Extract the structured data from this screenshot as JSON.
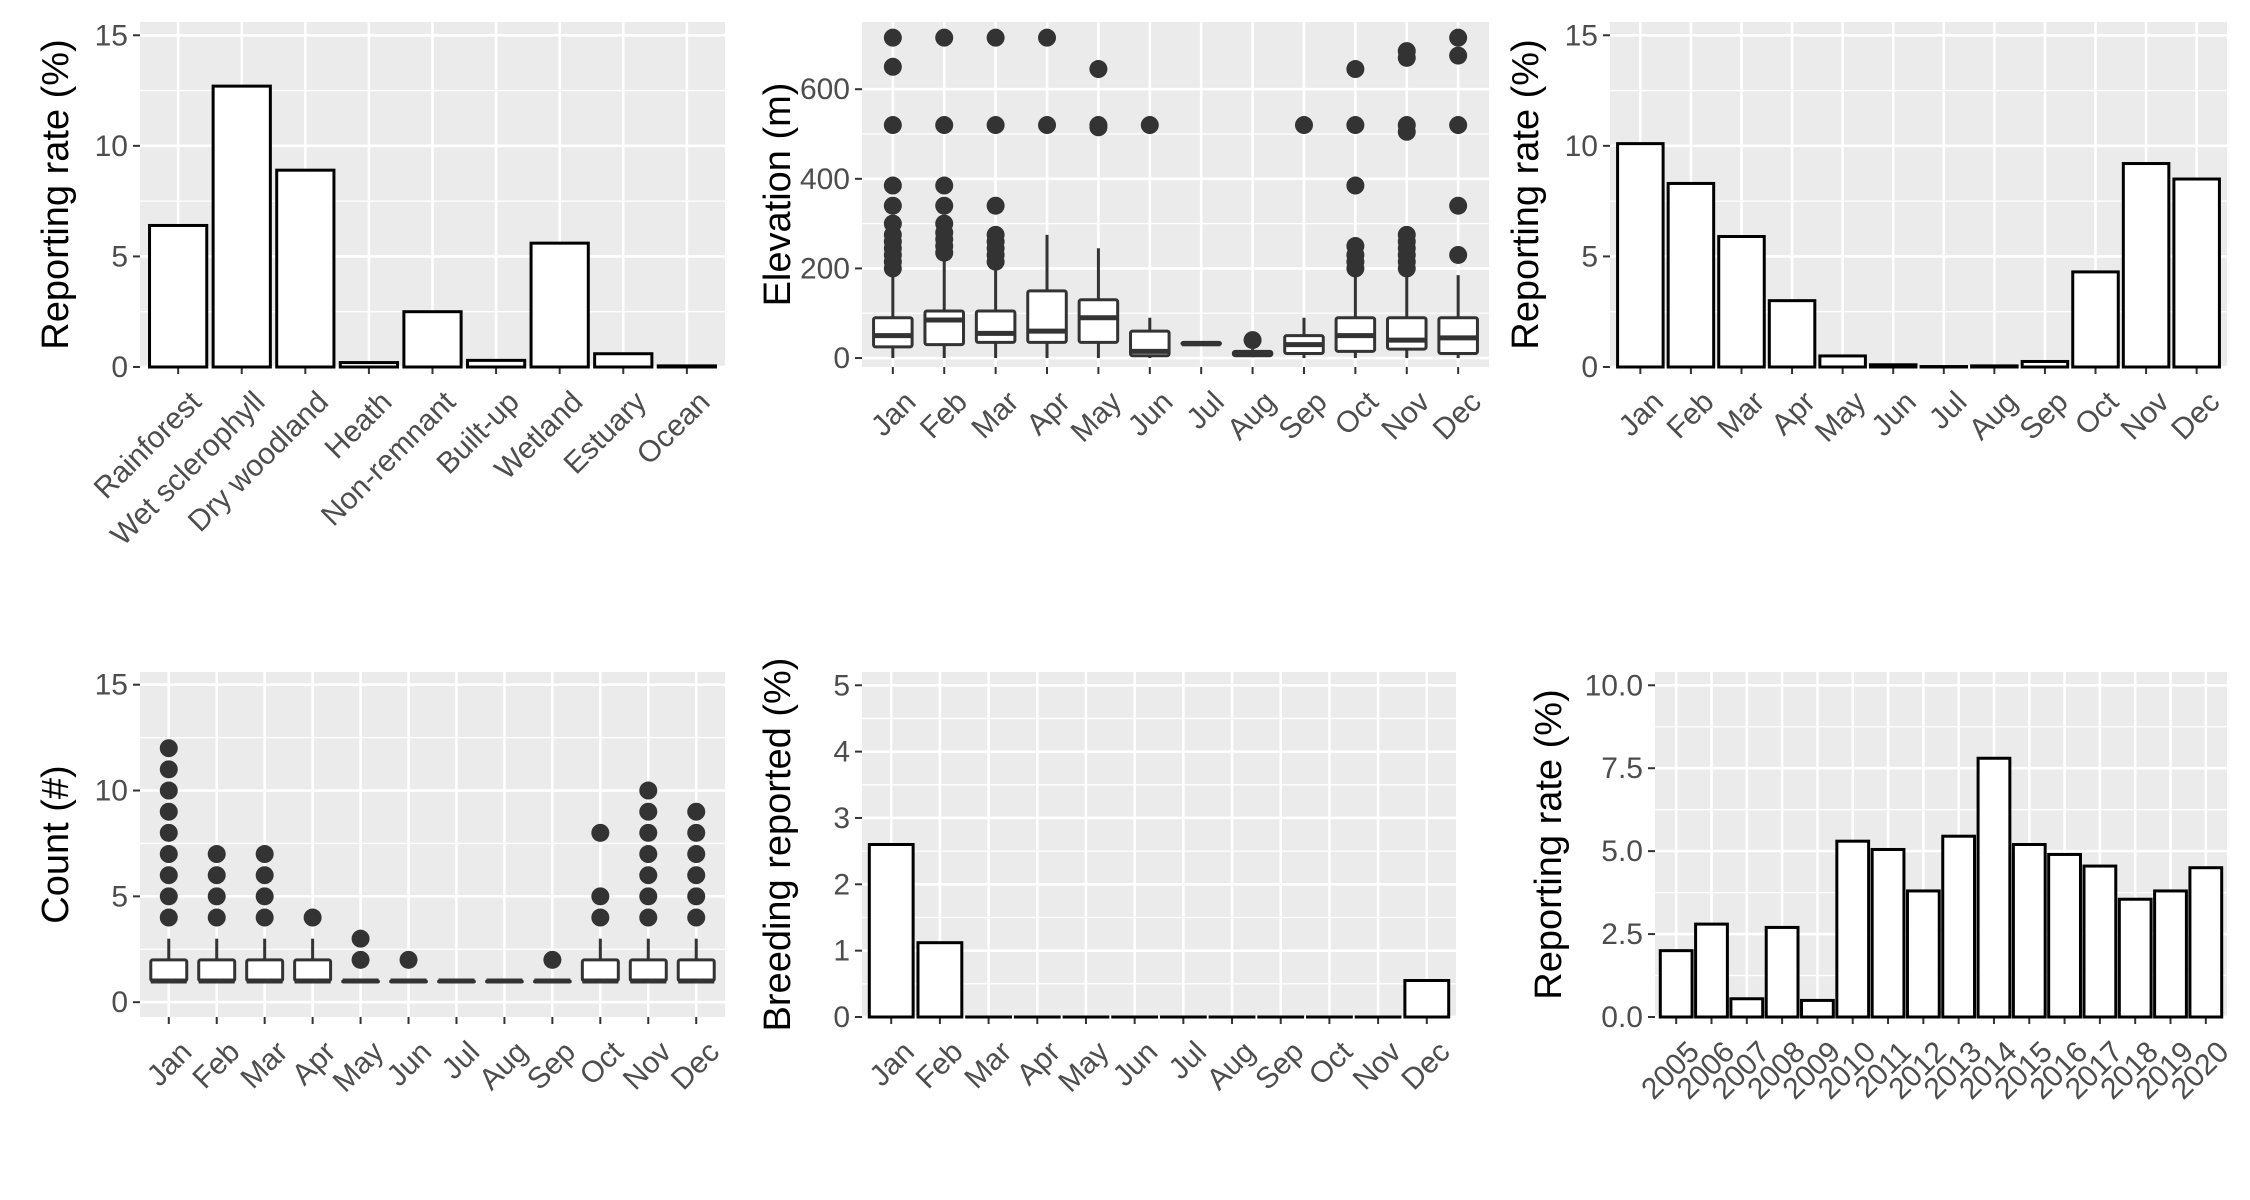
{
  "chart_data": [
    {
      "id": "habitat",
      "type": "bar",
      "ylabel": "Reporting rate (%)",
      "ylim": [
        0,
        15.6
      ],
      "yticks": [
        0,
        5,
        10,
        15
      ],
      "categories": [
        "Rainforest",
        "Wet sclerophyll",
        "Dry woodland",
        "Heath",
        "Non-remnant",
        "Built-up",
        "Wetland",
        "Estuary",
        "Ocean"
      ],
      "values": [
        6.4,
        12.7,
        8.9,
        0.2,
        2.5,
        0.3,
        5.6,
        0.6,
        0.05
      ],
      "grid": true
    },
    {
      "id": "elevation",
      "type": "boxplot",
      "ylabel": "Elevation (m)",
      "ylim": [
        -20,
        750
      ],
      "yticks": [
        0,
        200,
        400,
        600
      ],
      "categories": [
        "Jan",
        "Feb",
        "Mar",
        "Apr",
        "May",
        "Jun",
        "Jul",
        "Aug",
        "Sep",
        "Oct",
        "Nov",
        "Dec"
      ],
      "boxes": [
        {
          "min": 0,
          "q1": 25,
          "median": 50,
          "q3": 90,
          "max": 185,
          "outliers": [
            200,
            215,
            230,
            245,
            260,
            275,
            300,
            340,
            385,
            520,
            650,
            715
          ]
        },
        {
          "min": 0,
          "q1": 30,
          "median": 85,
          "q3": 105,
          "max": 225,
          "outliers": [
            235,
            250,
            265,
            280,
            300,
            340,
            385,
            520,
            715
          ]
        },
        {
          "min": 0,
          "q1": 35,
          "median": 55,
          "q3": 105,
          "max": 205,
          "outliers": [
            215,
            230,
            245,
            260,
            275,
            340,
            520,
            715
          ]
        },
        {
          "min": 0,
          "q1": 35,
          "median": 60,
          "q3": 150,
          "max": 275,
          "outliers": [
            520,
            715
          ]
        },
        {
          "min": 0,
          "q1": 35,
          "median": 90,
          "q3": 130,
          "max": 245,
          "outliers": [
            515,
            520,
            645
          ]
        },
        {
          "min": 0,
          "q1": 5,
          "median": 15,
          "q3": 60,
          "max": 90,
          "outliers": [
            520
          ]
        },
        {
          "min": 28,
          "q1": 30,
          "median": 32,
          "q3": 35,
          "max": 38,
          "outliers": []
        },
        {
          "min": 2,
          "q1": 5,
          "median": 10,
          "q3": 15,
          "max": 20,
          "outliers": [
            40
          ]
        },
        {
          "min": 0,
          "q1": 10,
          "median": 30,
          "q3": 50,
          "max": 90,
          "outliers": [
            520
          ]
        },
        {
          "min": 0,
          "q1": 15,
          "median": 50,
          "q3": 90,
          "max": 185,
          "outliers": [
            200,
            215,
            230,
            250,
            385,
            520,
            645
          ]
        },
        {
          "min": 0,
          "q1": 20,
          "median": 40,
          "q3": 90,
          "max": 185,
          "outliers": [
            200,
            215,
            230,
            245,
            260,
            275,
            505,
            520,
            670,
            685
          ]
        },
        {
          "min": 0,
          "q1": 10,
          "median": 45,
          "q3": 90,
          "max": 185,
          "outliers": [
            230,
            340,
            520,
            675,
            715
          ]
        }
      ],
      "grid": true
    },
    {
      "id": "monthly-rate",
      "type": "bar",
      "ylabel": "Reporting rate (%)",
      "ylim": [
        0,
        15.6
      ],
      "yticks": [
        0,
        5,
        10,
        15
      ],
      "categories": [
        "Jan",
        "Feb",
        "Mar",
        "Apr",
        "May",
        "Jun",
        "Jul",
        "Aug",
        "Sep",
        "Oct",
        "Nov",
        "Dec"
      ],
      "values": [
        10.1,
        8.3,
        5.9,
        3.0,
        0.5,
        0.1,
        0.02,
        0.05,
        0.25,
        4.3,
        9.2,
        8.5
      ],
      "grid": true
    },
    {
      "id": "count",
      "type": "boxplot",
      "ylabel": "Count (#)",
      "ylim": [
        -0.7,
        15.6
      ],
      "yticks": [
        0,
        5,
        10,
        15
      ],
      "categories": [
        "Jan",
        "Feb",
        "Mar",
        "Apr",
        "May",
        "Jun",
        "Jul",
        "Aug",
        "Sep",
        "Oct",
        "Nov",
        "Dec"
      ],
      "boxes": [
        {
          "min": 1,
          "q1": 1,
          "median": 1,
          "q3": 2,
          "max": 3,
          "outliers": [
            4,
            5,
            6,
            7,
            8,
            9,
            10,
            11,
            12
          ]
        },
        {
          "min": 1,
          "q1": 1,
          "median": 1,
          "q3": 2,
          "max": 3,
          "outliers": [
            4,
            5,
            6,
            7
          ]
        },
        {
          "min": 1,
          "q1": 1,
          "median": 1,
          "q3": 2,
          "max": 3,
          "outliers": [
            4,
            5,
            6,
            7
          ]
        },
        {
          "min": 1,
          "q1": 1,
          "median": 1,
          "q3": 2,
          "max": 3,
          "outliers": [
            4
          ]
        },
        {
          "min": 1,
          "q1": 1,
          "median": 1,
          "q3": 1,
          "max": 1,
          "outliers": [
            2,
            3
          ]
        },
        {
          "min": 1,
          "q1": 1,
          "median": 1,
          "q3": 1,
          "max": 1,
          "outliers": [
            2
          ]
        },
        {
          "min": 1,
          "q1": 1,
          "median": 1,
          "q3": 1,
          "max": 1,
          "outliers": []
        },
        {
          "min": 1,
          "q1": 1,
          "median": 1,
          "q3": 1,
          "max": 1,
          "outliers": []
        },
        {
          "min": 1,
          "q1": 1,
          "median": 1,
          "q3": 1,
          "max": 1,
          "outliers": [
            2
          ]
        },
        {
          "min": 1,
          "q1": 1,
          "median": 1,
          "q3": 2,
          "max": 3,
          "outliers": [
            4,
            5,
            8
          ]
        },
        {
          "min": 1,
          "q1": 1,
          "median": 1,
          "q3": 2,
          "max": 3,
          "outliers": [
            4,
            5,
            6,
            7,
            8,
            9,
            10
          ]
        },
        {
          "min": 1,
          "q1": 1,
          "median": 1,
          "q3": 2,
          "max": 3,
          "outliers": [
            4,
            5,
            6,
            7,
            8,
            9
          ]
        }
      ],
      "grid": true
    },
    {
      "id": "breeding",
      "type": "bar",
      "ylabel": "Breeding reported (%)",
      "ylim": [
        0,
        5.2
      ],
      "yticks": [
        0,
        1,
        2,
        3,
        4,
        5
      ],
      "categories": [
        "Jan",
        "Feb",
        "Mar",
        "Apr",
        "May",
        "Jun",
        "Jul",
        "Aug",
        "Sep",
        "Oct",
        "Nov",
        "Dec"
      ],
      "values": [
        2.6,
        1.12,
        0,
        0,
        0,
        0,
        0,
        0,
        0,
        0,
        0,
        0.55
      ],
      "grid": true
    },
    {
      "id": "yearly-rate",
      "type": "bar",
      "ylabel": "Reporting rate (%)",
      "ylim": [
        0,
        10.4
      ],
      "yticks": [
        0,
        2.5,
        5,
        7.5,
        10
      ],
      "ytick_labels": [
        "0.0",
        "2.5",
        "5.0",
        "7.5",
        "10.0"
      ],
      "categories": [
        "2005",
        "2006",
        "2007",
        "2008",
        "2009",
        "2010",
        "2011",
        "2012",
        "2013",
        "2014",
        "2015",
        "2016",
        "2017",
        "2018",
        "2019",
        "2020"
      ],
      "values": [
        2.0,
        2.8,
        0.55,
        2.7,
        0.5,
        5.3,
        5.05,
        3.8,
        5.45,
        7.8,
        5.2,
        4.9,
        4.55,
        3.55,
        3.8,
        4.5
      ],
      "grid": true
    }
  ]
}
